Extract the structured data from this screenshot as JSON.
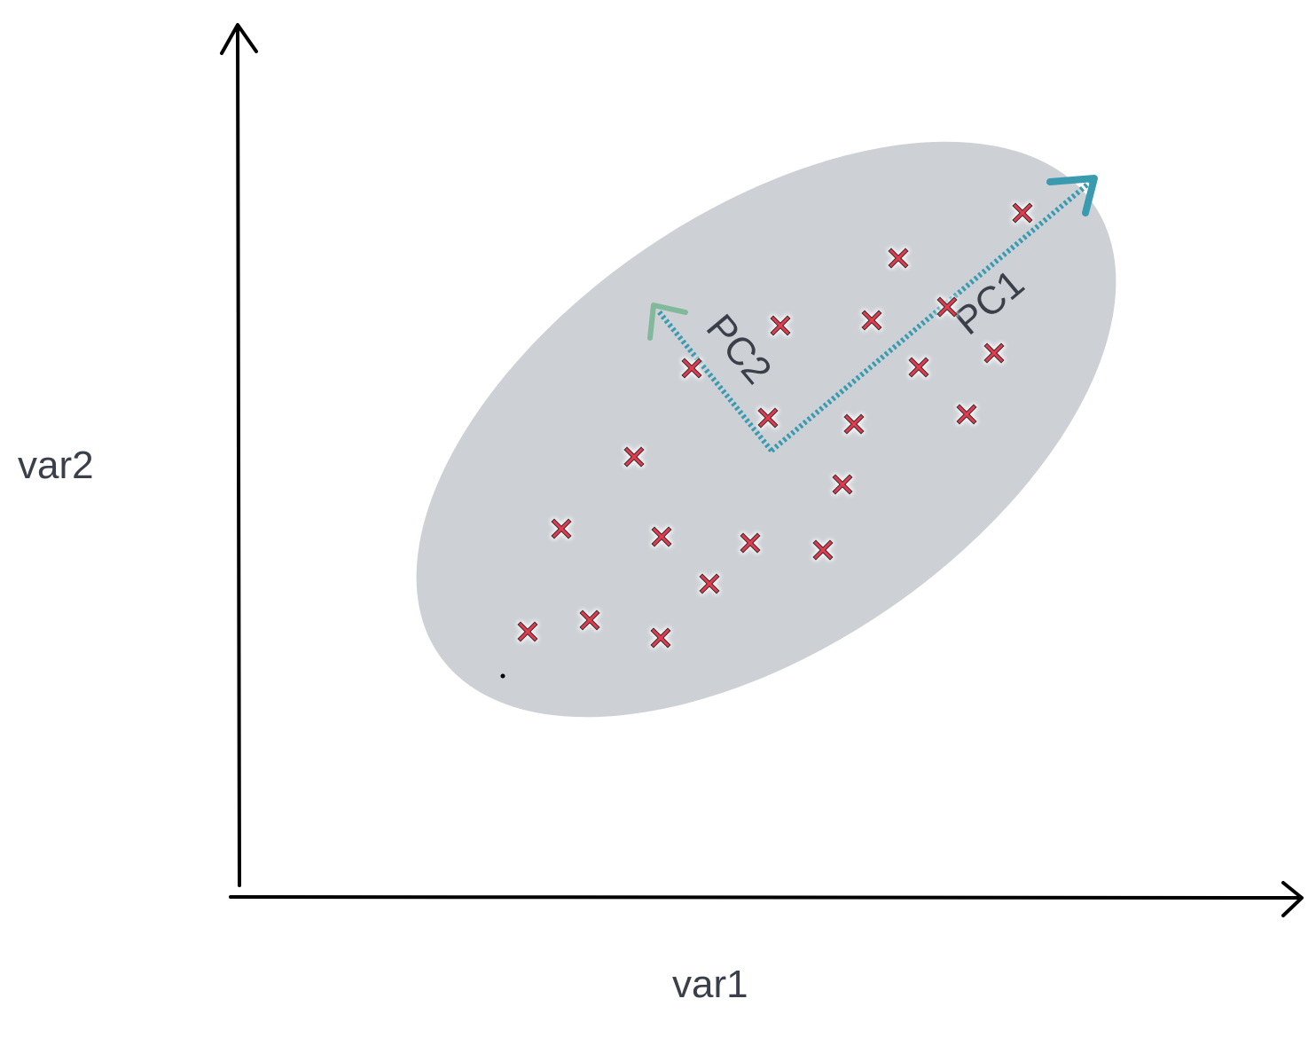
{
  "labels": {
    "x_axis": "var1",
    "y_axis": "var2",
    "pc1": "PC1",
    "pc2": "PC2"
  },
  "colors": {
    "axis": "#000000",
    "ellipse": "#cdd1d6",
    "marker": "#e23b4e",
    "pc1": "#3a9bb0",
    "pc2": "#82b99a",
    "text": "#3b3f4a"
  },
  "chart_data": {
    "type": "scatter",
    "x": [
      595,
      665,
      745,
      633,
      746,
      800,
      846,
      928,
      715,
      780,
      866,
      880,
      950,
      963,
      983,
      1036,
      1013,
      1068,
      1090,
      1121,
      1153
    ],
    "y": [
      712,
      699,
      719,
      596,
      605,
      658,
      612,
      620,
      515,
      415,
      471,
      367,
      546,
      478,
      361,
      414,
      291,
      346,
      467,
      398,
      240
    ],
    "xlabel": "var1",
    "ylabel": "var2",
    "annotations": [
      "PC1",
      "PC2"
    ]
  }
}
